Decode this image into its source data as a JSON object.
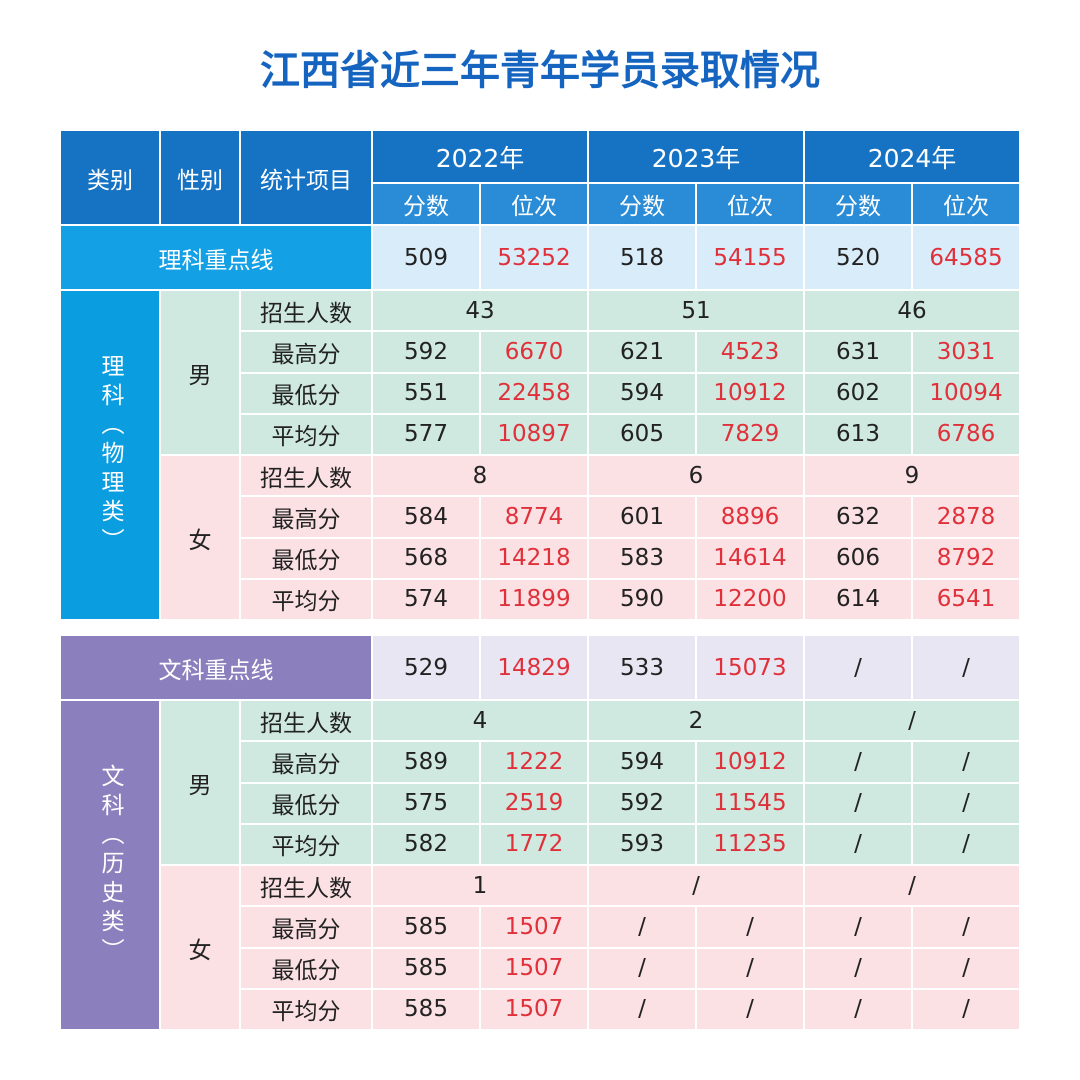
{
  "title": "江西省近三年青年学员录取情况",
  "header": {
    "category": "类别",
    "gender": "性别",
    "item": "统计项目",
    "years": [
      {
        "year": "2022年",
        "score": "分数",
        "rank": "位次"
      },
      {
        "year": "2023年",
        "score": "分数",
        "rank": "位次"
      },
      {
        "year": "2024年",
        "score": "分数",
        "rank": "位次"
      }
    ]
  },
  "sections": [
    {
      "line_label": "理科重点线",
      "line_values": [
        509,
        53252,
        518,
        54155,
        520,
        64585
      ],
      "category": "理科（物理类）",
      "groups": [
        {
          "gender": "男",
          "rows": [
            {
              "item": "招生人数",
              "values": [
                43,
                51,
                46
              ]
            },
            {
              "item": "最高分",
              "values": [
                592,
                6670,
                621,
                4523,
                631,
                3031
              ]
            },
            {
              "item": "最低分",
              "values": [
                551,
                22458,
                594,
                10912,
                602,
                10094
              ]
            },
            {
              "item": "平均分",
              "values": [
                577,
                10897,
                605,
                7829,
                613,
                6786
              ]
            }
          ]
        },
        {
          "gender": "女",
          "rows": [
            {
              "item": "招生人数",
              "values": [
                8,
                6,
                9
              ]
            },
            {
              "item": "最高分",
              "values": [
                584,
                8774,
                601,
                8896,
                632,
                2878
              ]
            },
            {
              "item": "最低分",
              "values": [
                568,
                14218,
                583,
                14614,
                606,
                8792
              ]
            },
            {
              "item": "平均分",
              "values": [
                574,
                11899,
                590,
                12200,
                614,
                6541
              ]
            }
          ]
        }
      ]
    },
    {
      "line_label": "文科重点线",
      "line_values": [
        529,
        14829,
        533,
        15073,
        "/",
        "/"
      ],
      "category": "文科（历史类）",
      "groups": [
        {
          "gender": "男",
          "rows": [
            {
              "item": "招生人数",
              "values": [
                4,
                2,
                "/"
              ]
            },
            {
              "item": "最高分",
              "values": [
                589,
                1222,
                594,
                10912,
                "/",
                "/"
              ]
            },
            {
              "item": "最低分",
              "values": [
                575,
                2519,
                592,
                11545,
                "/",
                "/"
              ]
            },
            {
              "item": "平均分",
              "values": [
                582,
                1772,
                593,
                11235,
                "/",
                "/"
              ]
            }
          ]
        },
        {
          "gender": "女",
          "rows": [
            {
              "item": "招生人数",
              "values": [
                1,
                "/",
                "/"
              ]
            },
            {
              "item": "最高分",
              "values": [
                585,
                1507,
                "/",
                "/",
                "/",
                "/"
              ]
            },
            {
              "item": "最低分",
              "values": [
                585,
                1507,
                "/",
                "/",
                "/",
                "/"
              ]
            },
            {
              "item": "平均分",
              "values": [
                585,
                1507,
                "/",
                "/",
                "/",
                "/"
              ]
            }
          ]
        }
      ]
    }
  ]
}
